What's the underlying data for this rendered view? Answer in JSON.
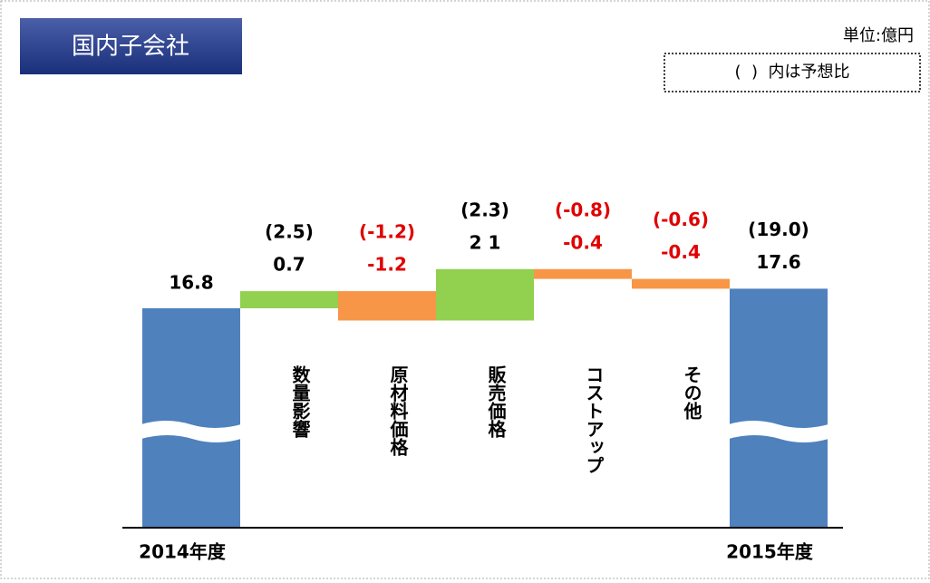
{
  "chart_data": {
    "type": "waterfall",
    "title": "国内子会社",
    "unit_note": "単位:億円",
    "legend_note": "(  )  内は予想比",
    "categories": [
      "2014年度",
      "数量影響",
      "原材料価格",
      "販売価格",
      "コストアップ",
      "その他",
      "2015年度"
    ],
    "totals": [
      true,
      false,
      false,
      false,
      false,
      false,
      true
    ],
    "values": [
      16.8,
      0.7,
      -1.2,
      2.1,
      -0.4,
      -0.4,
      17.6
    ],
    "value_labels": [
      "16.8",
      "0.7",
      "-1.2",
      "2 1",
      "-0.4",
      "-0.4",
      "17.6"
    ],
    "forecast_values": [
      null,
      2.5,
      -1.2,
      2.3,
      -0.8,
      -0.6,
      19.0
    ],
    "forecast_labels": [
      null,
      "(2.5)",
      "(-1.2)",
      "(2.3)",
      "(-0.8)",
      "(-0.6)",
      "(19.0)"
    ],
    "colors": [
      "#4f81bd",
      "#92d050",
      "#f79646",
      "#92d050",
      "#f79646",
      "#f79646",
      "#4f81bd"
    ],
    "axis_break": true
  }
}
